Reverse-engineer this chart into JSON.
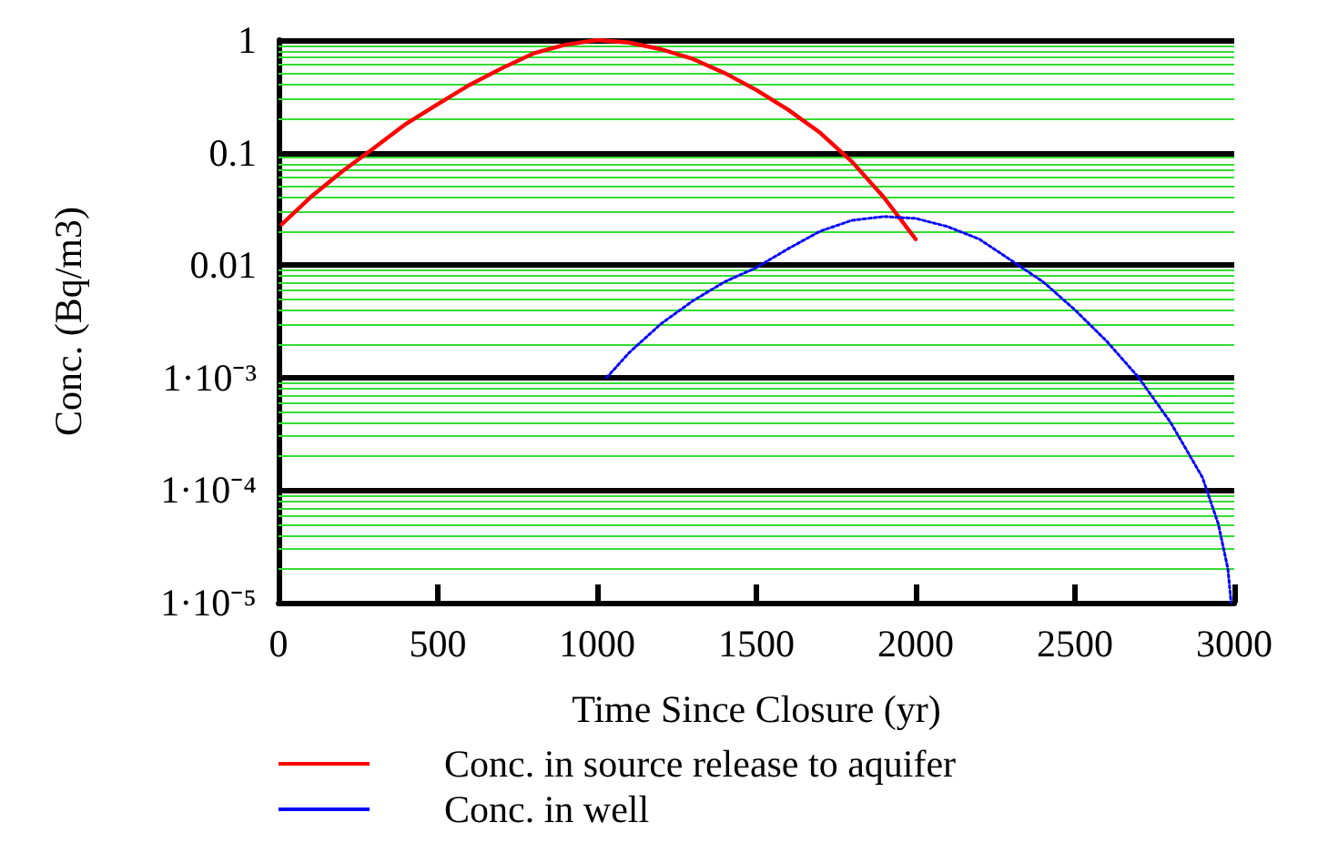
{
  "chart_data": {
    "type": "line",
    "xlabel": "Time Since Closure (yr)",
    "ylabel": "Conc. (Bq/m3)",
    "log": "y",
    "grid": "y",
    "legend": "bottom left",
    "marker": "none",
    "xlim": [
      0,
      3000
    ],
    "xticks": [
      0,
      500,
      1000,
      1500,
      2000,
      2500,
      3000
    ],
    "ylim": [
      1e-05,
      1
    ],
    "yticks": [
      {
        "value": 1e-05,
        "label": "1·10⁻⁵"
      },
      {
        "value": 2e-05,
        "label": null
      },
      {
        "value": 3e-05,
        "label": null
      },
      {
        "value": 4e-05,
        "label": null
      },
      {
        "value": 5e-05,
        "label": null
      },
      {
        "value": 6e-05,
        "label": null
      },
      {
        "value": 7e-05,
        "label": null
      },
      {
        "value": 8e-05,
        "label": null
      },
      {
        "value": 9e-05,
        "label": null
      },
      {
        "value": 0.0001,
        "label": "1·10⁻⁴"
      },
      {
        "value": 0.0002,
        "label": null
      },
      {
        "value": 0.0003,
        "label": null
      },
      {
        "value": 0.0004,
        "label": null
      },
      {
        "value": 0.0005,
        "label": null
      },
      {
        "value": 0.0006,
        "label": null
      },
      {
        "value": 0.0007,
        "label": null
      },
      {
        "value": 0.0008,
        "label": null
      },
      {
        "value": 0.0009,
        "label": null
      },
      {
        "value": 0.001,
        "label": "1·10⁻³"
      },
      {
        "value": 0.002,
        "label": null
      },
      {
        "value": 0.003,
        "label": null
      },
      {
        "value": 0.004,
        "label": null
      },
      {
        "value": 0.005,
        "label": null
      },
      {
        "value": 0.006,
        "label": null
      },
      {
        "value": 0.007,
        "label": null
      },
      {
        "value": 0.008,
        "label": null
      },
      {
        "value": 0.009,
        "label": null
      },
      0.01,
      {
        "value": 0.02,
        "label": null
      },
      {
        "value": 0.03,
        "label": null
      },
      {
        "value": 0.04,
        "label": null
      },
      {
        "value": 0.05,
        "label": null
      },
      {
        "value": 0.06,
        "label": null
      },
      {
        "value": 0.07,
        "label": null
      },
      {
        "value": 0.08,
        "label": null
      },
      {
        "value": 0.09,
        "label": null
      },
      0.1,
      {
        "value": 0.2,
        "label": null
      },
      {
        "value": 0.3,
        "label": null
      },
      {
        "value": 0.4,
        "label": null
      },
      {
        "value": 0.5,
        "label": null
      },
      {
        "value": 0.6,
        "label": null
      },
      {
        "value": 0.7,
        "label": null
      },
      {
        "value": 0.8,
        "label": null
      },
      {
        "value": 0.9,
        "label": null
      },
      1
    ],
    "series": [
      {
        "name": "Conc. in source release to aquifer",
        "color": "#ff0000",
        "line_style": "solid",
        "x": [
          10,
          100,
          200,
          300,
          400,
          500,
          600,
          700,
          800,
          900,
          1000,
          1100,
          1200,
          1300,
          1400,
          1500,
          1600,
          1700,
          1800,
          1900,
          2000
        ],
        "values": [
          0.023,
          0.04,
          0.068,
          0.11,
          0.18,
          0.27,
          0.4,
          0.56,
          0.76,
          0.91,
          1.0,
          0.95,
          0.83,
          0.68,
          0.51,
          0.36,
          0.24,
          0.15,
          0.083,
          0.04,
          0.017
        ]
      },
      {
        "name": "Conc. in well",
        "color": "#0000ff",
        "line_style": "dotted",
        "x": [
          1030,
          1100,
          1200,
          1300,
          1400,
          1500,
          1600,
          1700,
          1800,
          1900,
          2000,
          2100,
          2200,
          2300,
          2400,
          2500,
          2600,
          2700,
          2800,
          2900,
          2950,
          2980,
          2990
        ],
        "values": [
          0.001,
          0.00166,
          0.003,
          0.0048,
          0.0071,
          0.0095,
          0.014,
          0.02,
          0.025,
          0.027,
          0.026,
          0.022,
          0.017,
          0.011,
          0.0071,
          0.004,
          0.0021,
          0.001,
          0.0004,
          0.00013,
          5e-05,
          2e-05,
          1e-05
        ]
      }
    ]
  }
}
